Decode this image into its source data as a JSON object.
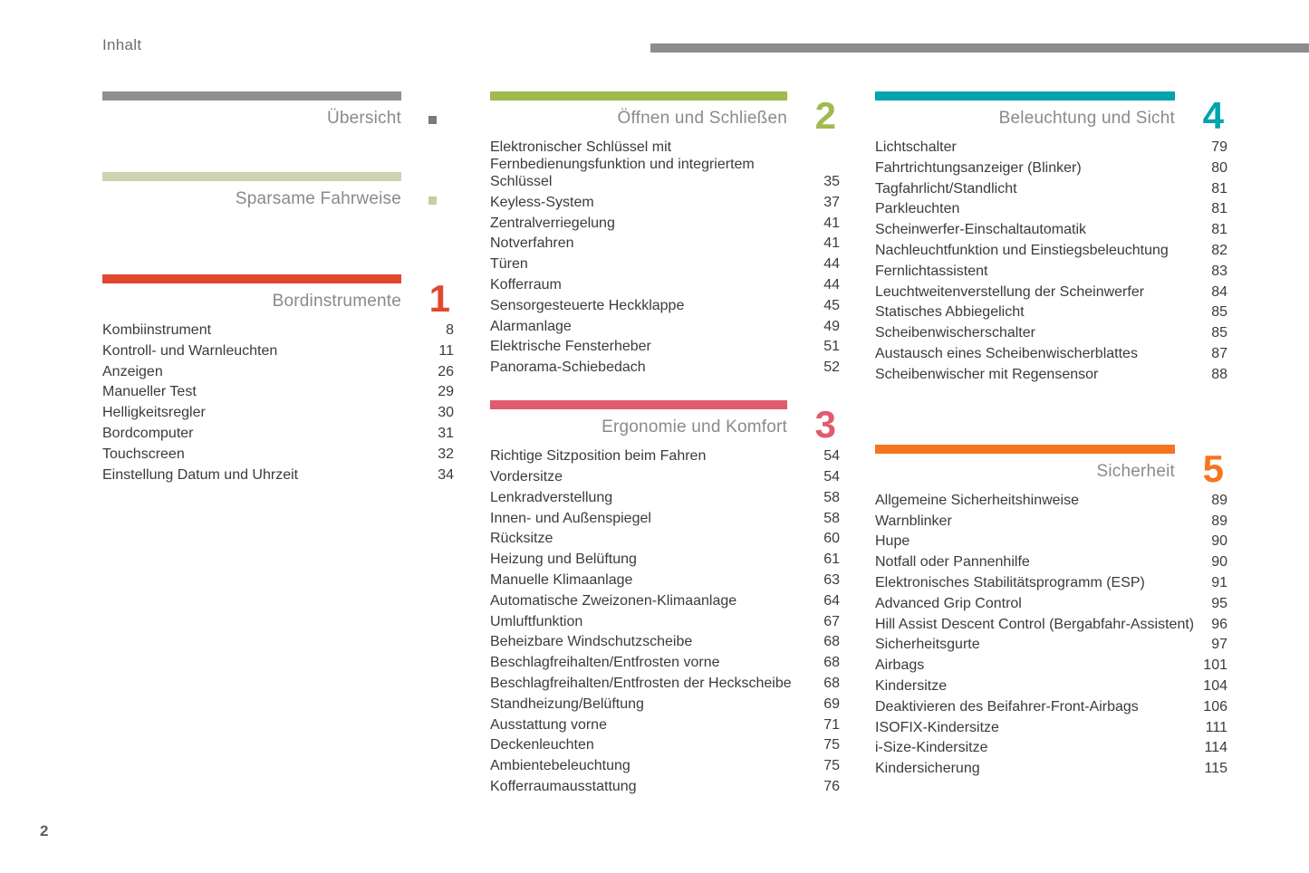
{
  "page": {
    "title": "Inhalt",
    "page_number": "2"
  },
  "colors": {
    "header_rule": "#8e8a8f",
    "text": "#3b3b3b",
    "section_title": "#8a8a8a"
  },
  "columns": [
    {
      "sections": [
        {
          "kind": "mini",
          "title": "Übersicht",
          "accent_color": "#918d92",
          "marker_color": "#7b7b7b",
          "items": []
        },
        {
          "kind": "mini",
          "title": "Sparsame Fahrweise",
          "accent_color": "#cdd3ae",
          "marker_color": "#c8cea3",
          "items": []
        },
        {
          "kind": "numbered",
          "number": "1",
          "title": "Bordinstrumente",
          "accent_color": "#e2472e",
          "items": [
            {
              "label": "Kombiinstrument",
              "page": "8"
            },
            {
              "label": "Kontroll- und Warnleuchten",
              "page": "11"
            },
            {
              "label": "Anzeigen",
              "page": "26"
            },
            {
              "label": "Manueller Test",
              "page": "29"
            },
            {
              "label": "Helligkeitsregler",
              "page": "30"
            },
            {
              "label": "Bordcomputer",
              "page": "31"
            },
            {
              "label": "Touchscreen",
              "page": "32"
            },
            {
              "label": "Einstellung Datum und Uhrzeit",
              "page": "34"
            }
          ]
        }
      ]
    },
    {
      "sections": [
        {
          "kind": "numbered",
          "number": "2",
          "title": "Öffnen und Schließen",
          "accent_color": "#a0ba4f",
          "items": [
            {
              "label": "Elektronischer Schlüssel mit Fernbedienungsfunktion und integriertem Schlüssel",
              "page": "35"
            },
            {
              "label": "Keyless-System",
              "page": "37"
            },
            {
              "label": "Zentralverriegelung",
              "page": "41"
            },
            {
              "label": "Notverfahren",
              "page": "41"
            },
            {
              "label": "Türen",
              "page": "44"
            },
            {
              "label": "Kofferraum",
              "page": "44"
            },
            {
              "label": "Sensorgesteuerte Heckklappe",
              "page": "45"
            },
            {
              "label": "Alarmanlage",
              "page": "49"
            },
            {
              "label": "Elektrische Fensterheber",
              "page": "51"
            },
            {
              "label": "Panorama-Schiebedach",
              "page": "52"
            }
          ]
        },
        {
          "kind": "numbered",
          "number": "3",
          "title": "Ergonomie und Komfort",
          "accent_color": "#e25a70",
          "items": [
            {
              "label": "Richtige Sitzposition beim Fahren",
              "page": "54"
            },
            {
              "label": "Vordersitze",
              "page": "54"
            },
            {
              "label": "Lenkradverstellung",
              "page": "58"
            },
            {
              "label": "Innen- und Außenspiegel",
              "page": "58"
            },
            {
              "label": "Rücksitze",
              "page": "60"
            },
            {
              "label": "Heizung und Belüftung",
              "page": "61"
            },
            {
              "label": "Manuelle Klimaanlage",
              "page": "63"
            },
            {
              "label": "Automatische Zweizonen-Klimaanlage",
              "page": "64"
            },
            {
              "label": "Umluftfunktion",
              "page": "67"
            },
            {
              "label": "Beheizbare Windschutzscheibe",
              "page": "68"
            },
            {
              "label": "Beschlagfreihalten/Entfrosten vorne",
              "page": "68"
            },
            {
              "label": "Beschlagfreihalten/Entfrosten der Heckscheibe",
              "page": "68"
            },
            {
              "label": "Standheizung/Belüftung",
              "page": "69"
            },
            {
              "label": "Ausstattung vorne",
              "page": "71"
            },
            {
              "label": "Deckenleuchten",
              "page": "75"
            },
            {
              "label": "Ambientebeleuchtung",
              "page": "75"
            },
            {
              "label": "Kofferraumausstattung",
              "page": "76"
            }
          ]
        }
      ]
    },
    {
      "sections": [
        {
          "kind": "numbered",
          "number": "4",
          "title": "Beleuchtung und Sicht",
          "accent_color": "#00a4ad",
          "items": [
            {
              "label": "Lichtschalter",
              "page": "79"
            },
            {
              "label": "Fahrtrichtungsanzeiger (Blinker)",
              "page": "80"
            },
            {
              "label": "Tagfahrlicht/Standlicht",
              "page": "81"
            },
            {
              "label": "Parkleuchten",
              "page": "81"
            },
            {
              "label": "Scheinwerfer-Einschaltautomatik",
              "page": "81"
            },
            {
              "label": "Nachleuchtfunktion und Einstiegsbeleuchtung",
              "page": "82"
            },
            {
              "label": "Fernlichtassistent",
              "page": "83"
            },
            {
              "label": "Leuchtweitenverstellung der Scheinwerfer",
              "page": "84"
            },
            {
              "label": "Statisches Abbiegelicht",
              "page": "85"
            },
            {
              "label": "Scheibenwischerschalter",
              "page": "85"
            },
            {
              "label": "Austausch eines Scheibenwischerblattes",
              "page": "87"
            },
            {
              "label": "Scheibenwischer mit Regensensor",
              "page": "88"
            }
          ]
        },
        {
          "kind": "numbered",
          "number": "5",
          "title": "Sicherheit",
          "accent_color": "#f5751f",
          "items": [
            {
              "label": "Allgemeine Sicherheitshinweise",
              "page": "89"
            },
            {
              "label": "Warnblinker",
              "page": "89"
            },
            {
              "label": "Hupe",
              "page": "90"
            },
            {
              "label": "Notfall oder Pannenhilfe",
              "page": "90"
            },
            {
              "label": "Elektronisches Stabilitätsprogramm (ESP)",
              "page": "91"
            },
            {
              "label": "Advanced Grip Control",
              "page": "95"
            },
            {
              "label": "Hill Assist Descent Control (Bergabfahr-Assistent)",
              "page": "96"
            },
            {
              "label": "Sicherheitsgurte",
              "page": "97"
            },
            {
              "label": "Airbags",
              "page": "101"
            },
            {
              "label": "Kindersitze",
              "page": "104"
            },
            {
              "label": "Deaktivieren des Beifahrer-Front-Airbags",
              "page": "106"
            },
            {
              "label": "ISOFIX-Kindersitze",
              "page": "111"
            },
            {
              "label": "i-Size-Kindersitze",
              "page": "114"
            },
            {
              "label": "Kindersicherung",
              "page": "115"
            }
          ]
        }
      ]
    }
  ]
}
